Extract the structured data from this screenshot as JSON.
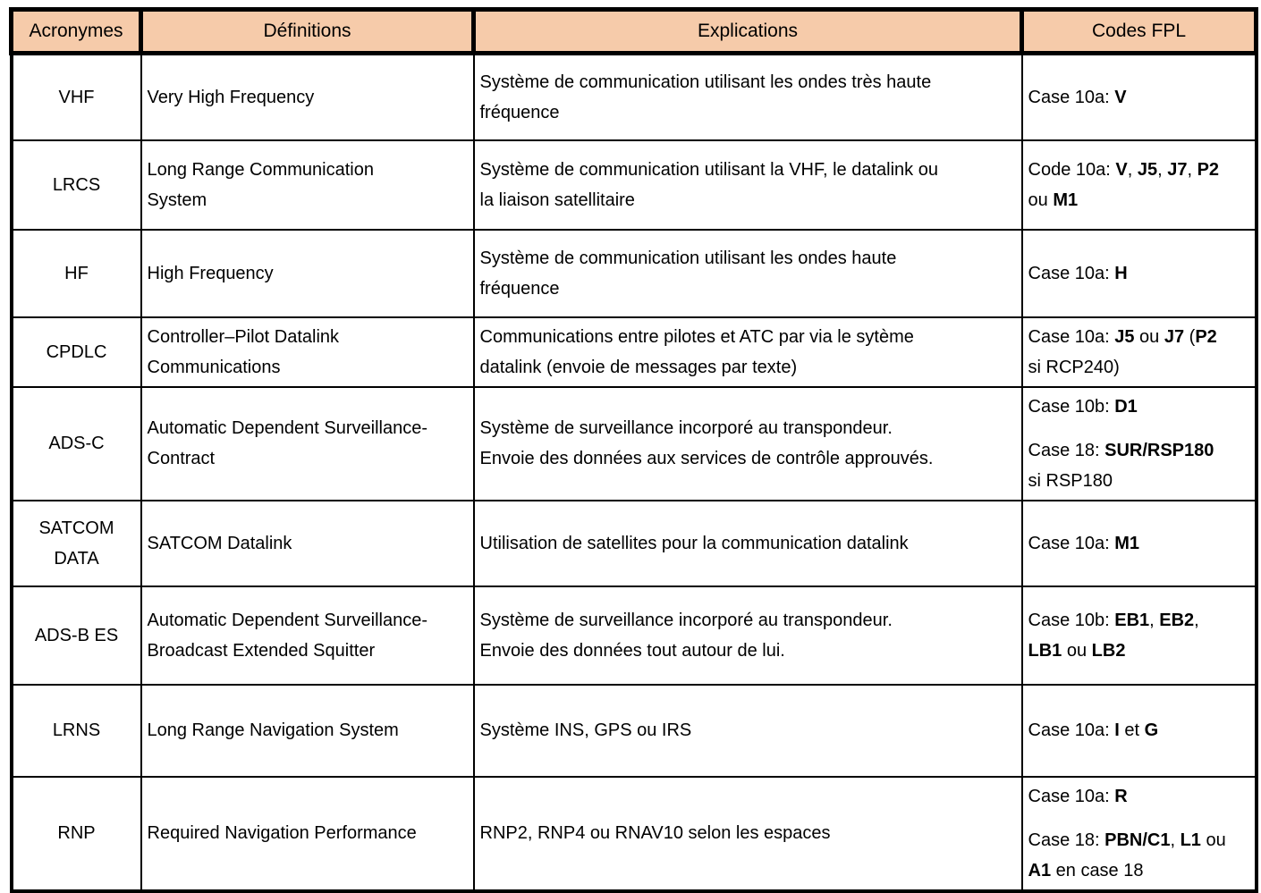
{
  "colors": {
    "header_bg": "#F6CBAA",
    "border": "#000000"
  },
  "table": {
    "headers": [
      "Acronymes",
      "Définitions",
      "Explications",
      "Codes FPL"
    ],
    "rows": [
      {
        "acronym": "VHF",
        "definition": "Very High Frequency",
        "explanation": "Système de communication utilisant les ondes très haute\nfréquence",
        "codes": [
          [
            {
              "t": "Case 10a: "
            },
            {
              "t": "V",
              "b": true
            }
          ]
        ]
      },
      {
        "acronym": "LRCS",
        "definition": "Long Range Communication\nSystem",
        "explanation": "Système de communication utilisant la VHF, le datalink ou\nla liaison satellitaire",
        "codes": [
          [
            {
              "t": "Code 10a: "
            },
            {
              "t": "V",
              "b": true
            },
            {
              "t": ", "
            },
            {
              "t": "J5",
              "b": true
            },
            {
              "t": ", "
            },
            {
              "t": "J7",
              "b": true
            },
            {
              "t": ", "
            },
            {
              "t": "P2",
              "b": true
            },
            {
              "t": "\nou "
            },
            {
              "t": "M1",
              "b": true
            }
          ]
        ]
      },
      {
        "acronym": "HF",
        "definition": "High Frequency",
        "explanation": "Système de communication utilisant les ondes haute\nfréquence",
        "codes": [
          [
            {
              "t": "Case 10a: "
            },
            {
              "t": "H",
              "b": true
            }
          ]
        ]
      },
      {
        "acronym": "CPDLC",
        "definition": "Controller–Pilot Datalink\nCommunications",
        "explanation": "Communications entre pilotes et ATC par via le sytème\ndatalink (envoie de messages par texte)",
        "codes": [
          [
            {
              "t": "Case 10a: "
            },
            {
              "t": "J5",
              "b": true
            },
            {
              "t": " ou "
            },
            {
              "t": "J7",
              "b": true
            },
            {
              "t": " ("
            },
            {
              "t": "P2",
              "b": true
            },
            {
              "t": "\nsi RCP240)"
            }
          ]
        ]
      },
      {
        "acronym": "ADS-C",
        "definition": "Automatic Dependent Surveillance-\nContract",
        "explanation": "Système de surveillance incorporé au transpondeur.\nEnvoie des données aux services de contrôle approuvés.",
        "codes": [
          [
            {
              "t": "Case 10b: "
            },
            {
              "t": "D1",
              "b": true
            }
          ],
          [
            {
              "t": "Case 18: "
            },
            {
              "t": "SUR/RSP180",
              "b": true
            },
            {
              "t": "\nsi RSP180"
            }
          ]
        ]
      },
      {
        "acronym": "SATCOM\nDATA",
        "definition": "SATCOM Datalink",
        "explanation": "Utilisation de satellites pour la communication datalink",
        "codes": [
          [
            {
              "t": "Case 10a: "
            },
            {
              "t": "M1",
              "b": true
            }
          ]
        ]
      },
      {
        "acronym": "ADS-B ES",
        "definition": "Automatic Dependent Surveillance-\nBroadcast Extended Squitter",
        "explanation": "Système de surveillance incorporé au transpondeur.\nEnvoie des données tout autour de lui.",
        "codes": [
          [
            {
              "t": "Case 10b: "
            },
            {
              "t": "EB1",
              "b": true
            },
            {
              "t": ", "
            },
            {
              "t": "EB2",
              "b": true
            },
            {
              "t": ",\n"
            },
            {
              "t": "LB1",
              "b": true
            },
            {
              "t": " ou "
            },
            {
              "t": "LB2",
              "b": true
            }
          ]
        ]
      },
      {
        "acronym": "LRNS",
        "definition": "Long Range Navigation System",
        "explanation": "Système INS, GPS ou IRS",
        "codes": [
          [
            {
              "t": "Case 10a: "
            },
            {
              "t": "I",
              "b": true
            },
            {
              "t": " et "
            },
            {
              "t": "G",
              "b": true
            }
          ]
        ]
      },
      {
        "acronym": "RNP",
        "definition": "Required Navigation Performance",
        "explanation": "RNP2, RNP4 ou RNAV10 selon les espaces",
        "codes": [
          [
            {
              "t": "Case 10a: "
            },
            {
              "t": "R",
              "b": true
            }
          ],
          [
            {
              "t": "Case 18: "
            },
            {
              "t": "PBN/C1",
              "b": true
            },
            {
              "t": ", "
            },
            {
              "t": "L1",
              "b": true
            },
            {
              "t": " ou\n"
            },
            {
              "t": "A1",
              "b": true
            },
            {
              "t": " en case 18"
            }
          ]
        ]
      }
    ]
  }
}
